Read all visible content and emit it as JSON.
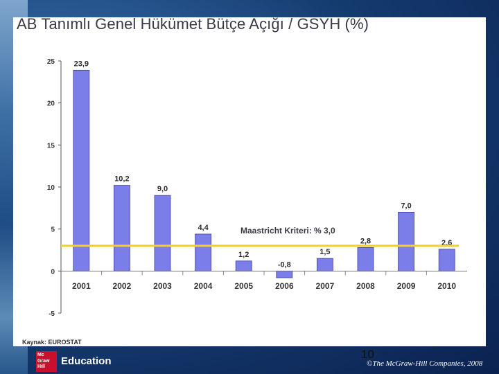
{
  "slide": {
    "title": "AB Tanımlı Genel Hükümet Bütçe Açığı / GSYH (%)",
    "source": "Kaynak: EUROSTAT",
    "logo_text": "Mc Graw Hill",
    "education_label": "Education",
    "page_number": "10",
    "copyright": "©The McGraw-Hill Companies, 2008"
  },
  "chart_data": {
    "type": "bar",
    "title": "AB Tanımlı Genel Hükümet Bütçe Açığı / GSYH (%)",
    "categories": [
      "2001",
      "2002",
      "2003",
      "2004",
      "2005",
      "2006",
      "2007",
      "2008",
      "2009",
      "2010"
    ],
    "values": [
      23.9,
      10.2,
      9.0,
      4.4,
      1.2,
      -0.8,
      1.5,
      2.8,
      7.0,
      2.6
    ],
    "data_labels": [
      "23,9",
      "10,2",
      "9,0",
      "4,4",
      "1,2",
      "-0,8",
      "1,5",
      "2,8",
      "7,0",
      "2,6"
    ],
    "ylim": [
      -5,
      25
    ],
    "yticks": [
      25,
      20,
      15,
      10,
      5,
      0,
      -5
    ],
    "grid": false,
    "reference_line": {
      "value": 3.0,
      "label": "Maastricht Kriteri: % 3,0",
      "color": "#f2cf2b"
    },
    "bar_color": "#7b7ee8",
    "xlabel": "",
    "ylabel": ""
  }
}
